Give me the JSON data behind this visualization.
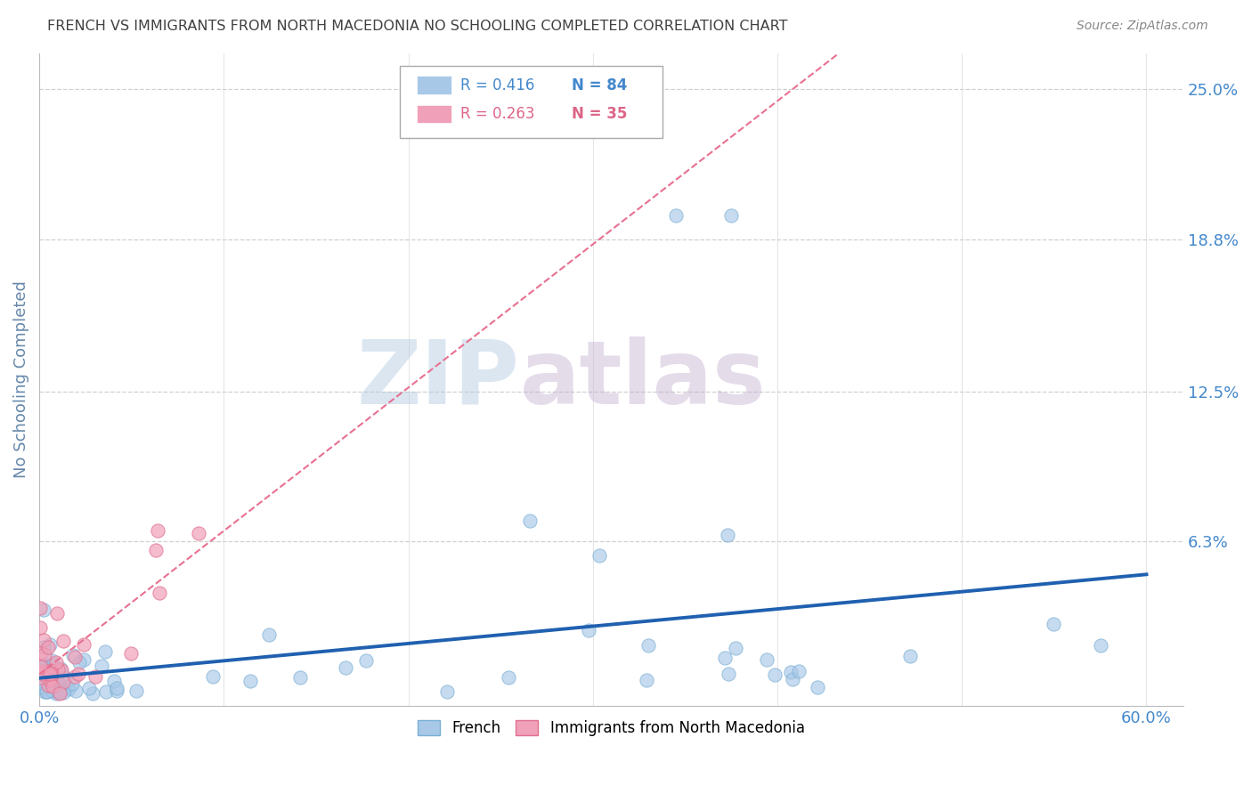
{
  "title": "FRENCH VS IMMIGRANTS FROM NORTH MACEDONIA NO SCHOOLING COMPLETED CORRELATION CHART",
  "source": "Source: ZipAtlas.com",
  "ylabel": "No Schooling Completed",
  "xlim": [
    0.0,
    0.62
  ],
  "ylim": [
    -0.005,
    0.265
  ],
  "ytick_values": [
    0.063,
    0.125,
    0.188,
    0.25
  ],
  "ytick_labels": [
    "6.3%",
    "12.5%",
    "18.8%",
    "25.0%"
  ],
  "french_color": "#a8c8e8",
  "french_edge_color": "#7aafd4",
  "immig_color": "#f0a0b8",
  "immig_edge_color": "#e07090",
  "reg_line_french_color": "#2060b0",
  "reg_line_immig_color": "#e87090",
  "background_color": "#ffffff",
  "grid_color": "#d0d0d0",
  "title_color": "#404040",
  "tick_label_color": "#4488cc",
  "ylabel_color": "#6688aa",
  "source_color": "#888888",
  "legend_r1_color": "#4488cc",
  "legend_r2_color": "#dd6688",
  "legend_box1_color": "#a8c8e8",
  "legend_box2_color": "#f0a0b8",
  "watermark_zip_color": "#b0c8e0",
  "watermark_atlas_color": "#c0a8cc"
}
